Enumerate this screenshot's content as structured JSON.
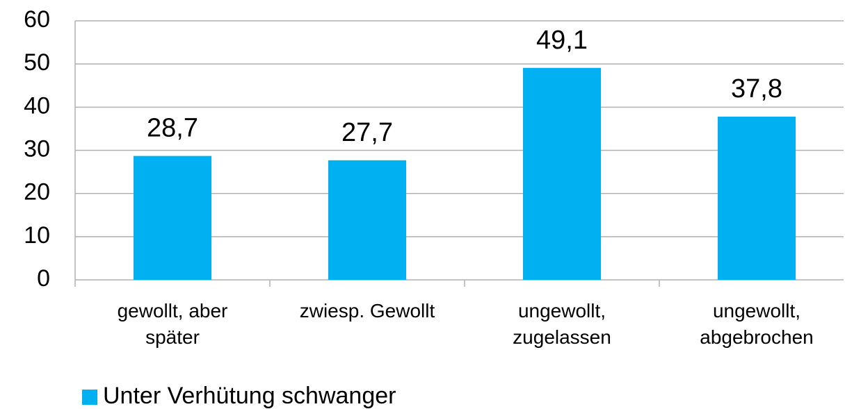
{
  "chart_data": {
    "type": "bar",
    "categories": [
      "gewollt, aber später",
      "zwiesp. Gewollt",
      "ungewollt, zugelassen",
      "ungewollt, abgebrochen"
    ],
    "series": [
      {
        "name": "Unter Verhütung schwanger",
        "color": "#00b0f0",
        "values": [
          28.7,
          27.7,
          49.1,
          37.8
        ],
        "value_labels": [
          "28,7",
          "27,7",
          "49,1",
          "37,8"
        ]
      }
    ],
    "ylim": [
      0,
      60
    ],
    "yticks": [
      0,
      10,
      20,
      30,
      40,
      50,
      60
    ],
    "grid": true,
    "legend": "bottom-left"
  }
}
